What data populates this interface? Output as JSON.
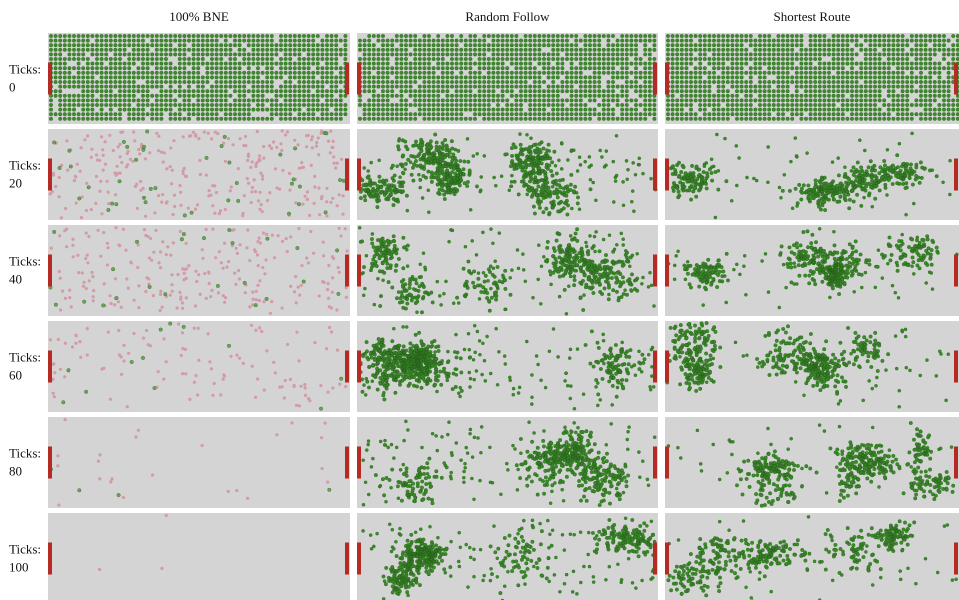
{
  "header": {
    "columns": [
      "100% BNE",
      "Random Follow",
      "Shortest Route"
    ]
  },
  "rows": [
    {
      "label": "Ticks:",
      "tick": 0
    },
    {
      "label": "Ticks:",
      "tick": 20
    },
    {
      "label": "Ticks:",
      "tick": 40
    },
    {
      "label": "Ticks:",
      "tick": 60
    },
    {
      "label": "Ticks:",
      "tick": 80
    },
    {
      "label": "Ticks:",
      "tick": 100
    }
  ]
}
